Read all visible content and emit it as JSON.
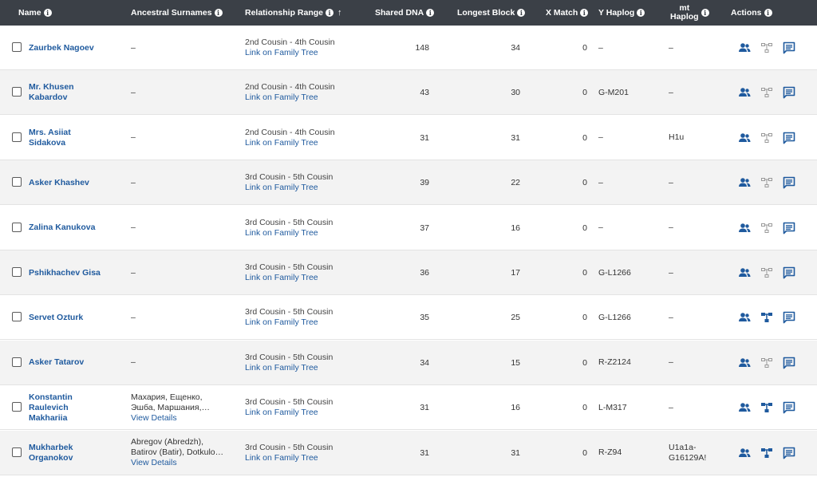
{
  "header": {
    "name": "Name",
    "surnames": "Ancestral Surnames",
    "relationship": "Relationship Range",
    "shared_dna": "Shared DNA",
    "longest_block": "Longest Block",
    "x_match": "X Match",
    "y_haplog": "Y Haplog",
    "mt_haplog_line1": "mt",
    "mt_haplog_line2": "Haplog",
    "actions": "Actions"
  },
  "colors": {
    "header_bg": "#3b4047",
    "link": "#1f5a9e",
    "icon_blue": "#1f5a9e",
    "icon_gray": "#9a9a9a"
  },
  "matches": [
    {
      "name_line1": "Zaurbek Nagoev",
      "name_line2": "",
      "name_line3": "",
      "surname_line1": "–",
      "surname_line2": "",
      "surname_link": "",
      "relationship": "2nd Cousin - 4th Cousin",
      "tree_link": "Link on Family Tree",
      "shared_dna": "148",
      "longest_block": "34",
      "x_match": "0",
      "y_haplog": "–",
      "mt_line1": "–",
      "mt_line2": "",
      "tree_icon": "family-tree-icon-inactive"
    },
    {
      "name_line1": "Mr. Khusen",
      "name_line2": "Kabardov",
      "name_line3": "",
      "surname_line1": "–",
      "surname_line2": "",
      "surname_link": "",
      "relationship": "2nd Cousin - 4th Cousin",
      "tree_link": "Link on Family Tree",
      "shared_dna": "43",
      "longest_block": "30",
      "x_match": "0",
      "y_haplog": "G-M201",
      "mt_line1": "–",
      "mt_line2": "",
      "tree_icon": "family-tree-icon-inactive"
    },
    {
      "name_line1": "Mrs. Asiiat",
      "name_line2": "Sidakova",
      "name_line3": "",
      "surname_line1": "–",
      "surname_line2": "",
      "surname_link": "",
      "relationship": "2nd Cousin - 4th Cousin",
      "tree_link": "Link on Family Tree",
      "shared_dna": "31",
      "longest_block": "31",
      "x_match": "0",
      "y_haplog": "–",
      "mt_line1": "H1u",
      "mt_line2": "",
      "tree_icon": "family-tree-icon-inactive"
    },
    {
      "name_line1": "Asker Khashev",
      "name_line2": "",
      "name_line3": "",
      "surname_line1": "–",
      "surname_line2": "",
      "surname_link": "",
      "relationship": "3rd Cousin - 5th Cousin",
      "tree_link": "Link on Family Tree",
      "shared_dna": "39",
      "longest_block": "22",
      "x_match": "0",
      "y_haplog": "–",
      "mt_line1": "–",
      "mt_line2": "",
      "tree_icon": "family-tree-icon-inactive"
    },
    {
      "name_line1": "Zalina Kanukova",
      "name_line2": "",
      "name_line3": "",
      "surname_line1": "–",
      "surname_line2": "",
      "surname_link": "",
      "relationship": "3rd Cousin - 5th Cousin",
      "tree_link": "Link on Family Tree",
      "shared_dna": "37",
      "longest_block": "16",
      "x_match": "0",
      "y_haplog": "–",
      "mt_line1": "–",
      "mt_line2": "",
      "tree_icon": "family-tree-icon-inactive"
    },
    {
      "name_line1": "Pshikhachev Gisa",
      "name_line2": "",
      "name_line3": "",
      "surname_line1": "–",
      "surname_line2": "",
      "surname_link": "",
      "relationship": "3rd Cousin - 5th Cousin",
      "tree_link": "Link on Family Tree",
      "shared_dna": "36",
      "longest_block": "17",
      "x_match": "0",
      "y_haplog": "G-L1266",
      "mt_line1": "–",
      "mt_line2": "",
      "tree_icon": "family-tree-icon-inactive"
    },
    {
      "name_line1": "Servet Ozturk",
      "name_line2": "",
      "name_line3": "",
      "surname_line1": "–",
      "surname_line2": "",
      "surname_link": "",
      "relationship": "3rd Cousin - 5th Cousin",
      "tree_link": "Link on Family Tree",
      "shared_dna": "35",
      "longest_block": "25",
      "x_match": "0",
      "y_haplog": "G-L1266",
      "mt_line1": "–",
      "mt_line2": "",
      "tree_icon": "family-tree-icon-active"
    },
    {
      "name_line1": "Asker Tatarov",
      "name_line2": "",
      "name_line3": "",
      "surname_line1": "–",
      "surname_line2": "",
      "surname_link": "",
      "relationship": "3rd Cousin - 5th Cousin",
      "tree_link": "Link on Family Tree",
      "shared_dna": "34",
      "longest_block": "15",
      "x_match": "0",
      "y_haplog": "R-Z2124",
      "mt_line1": "–",
      "mt_line2": "",
      "tree_icon": "family-tree-icon-inactive"
    },
    {
      "name_line1": "Konstantin",
      "name_line2": "Raulevich",
      "name_line3": "Makhariia",
      "surname_line1": "Махария, Ещенко,",
      "surname_line2": "Эшба, Маршания,…",
      "surname_link": "View Details",
      "relationship": "3rd Cousin - 5th Cousin",
      "tree_link": "Link on Family Tree",
      "shared_dna": "31",
      "longest_block": "16",
      "x_match": "0",
      "y_haplog": "L-M317",
      "mt_line1": "–",
      "mt_line2": "",
      "tree_icon": "family-tree-icon-active"
    },
    {
      "name_line1": "Mukharbek",
      "name_line2": "Organokov",
      "name_line3": "",
      "surname_line1": "Abregov (Abredzh),",
      "surname_line2": "Batirov (Batir), Dotkulo…",
      "surname_link": "View Details",
      "relationship": "3rd Cousin - 5th Cousin",
      "tree_link": "Link on Family Tree",
      "shared_dna": "31",
      "longest_block": "31",
      "x_match": "0",
      "y_haplog": "R-Z94",
      "mt_line1": "U1a1a-",
      "mt_line2": "G16129A!",
      "tree_icon": "family-tree-icon-active"
    }
  ]
}
